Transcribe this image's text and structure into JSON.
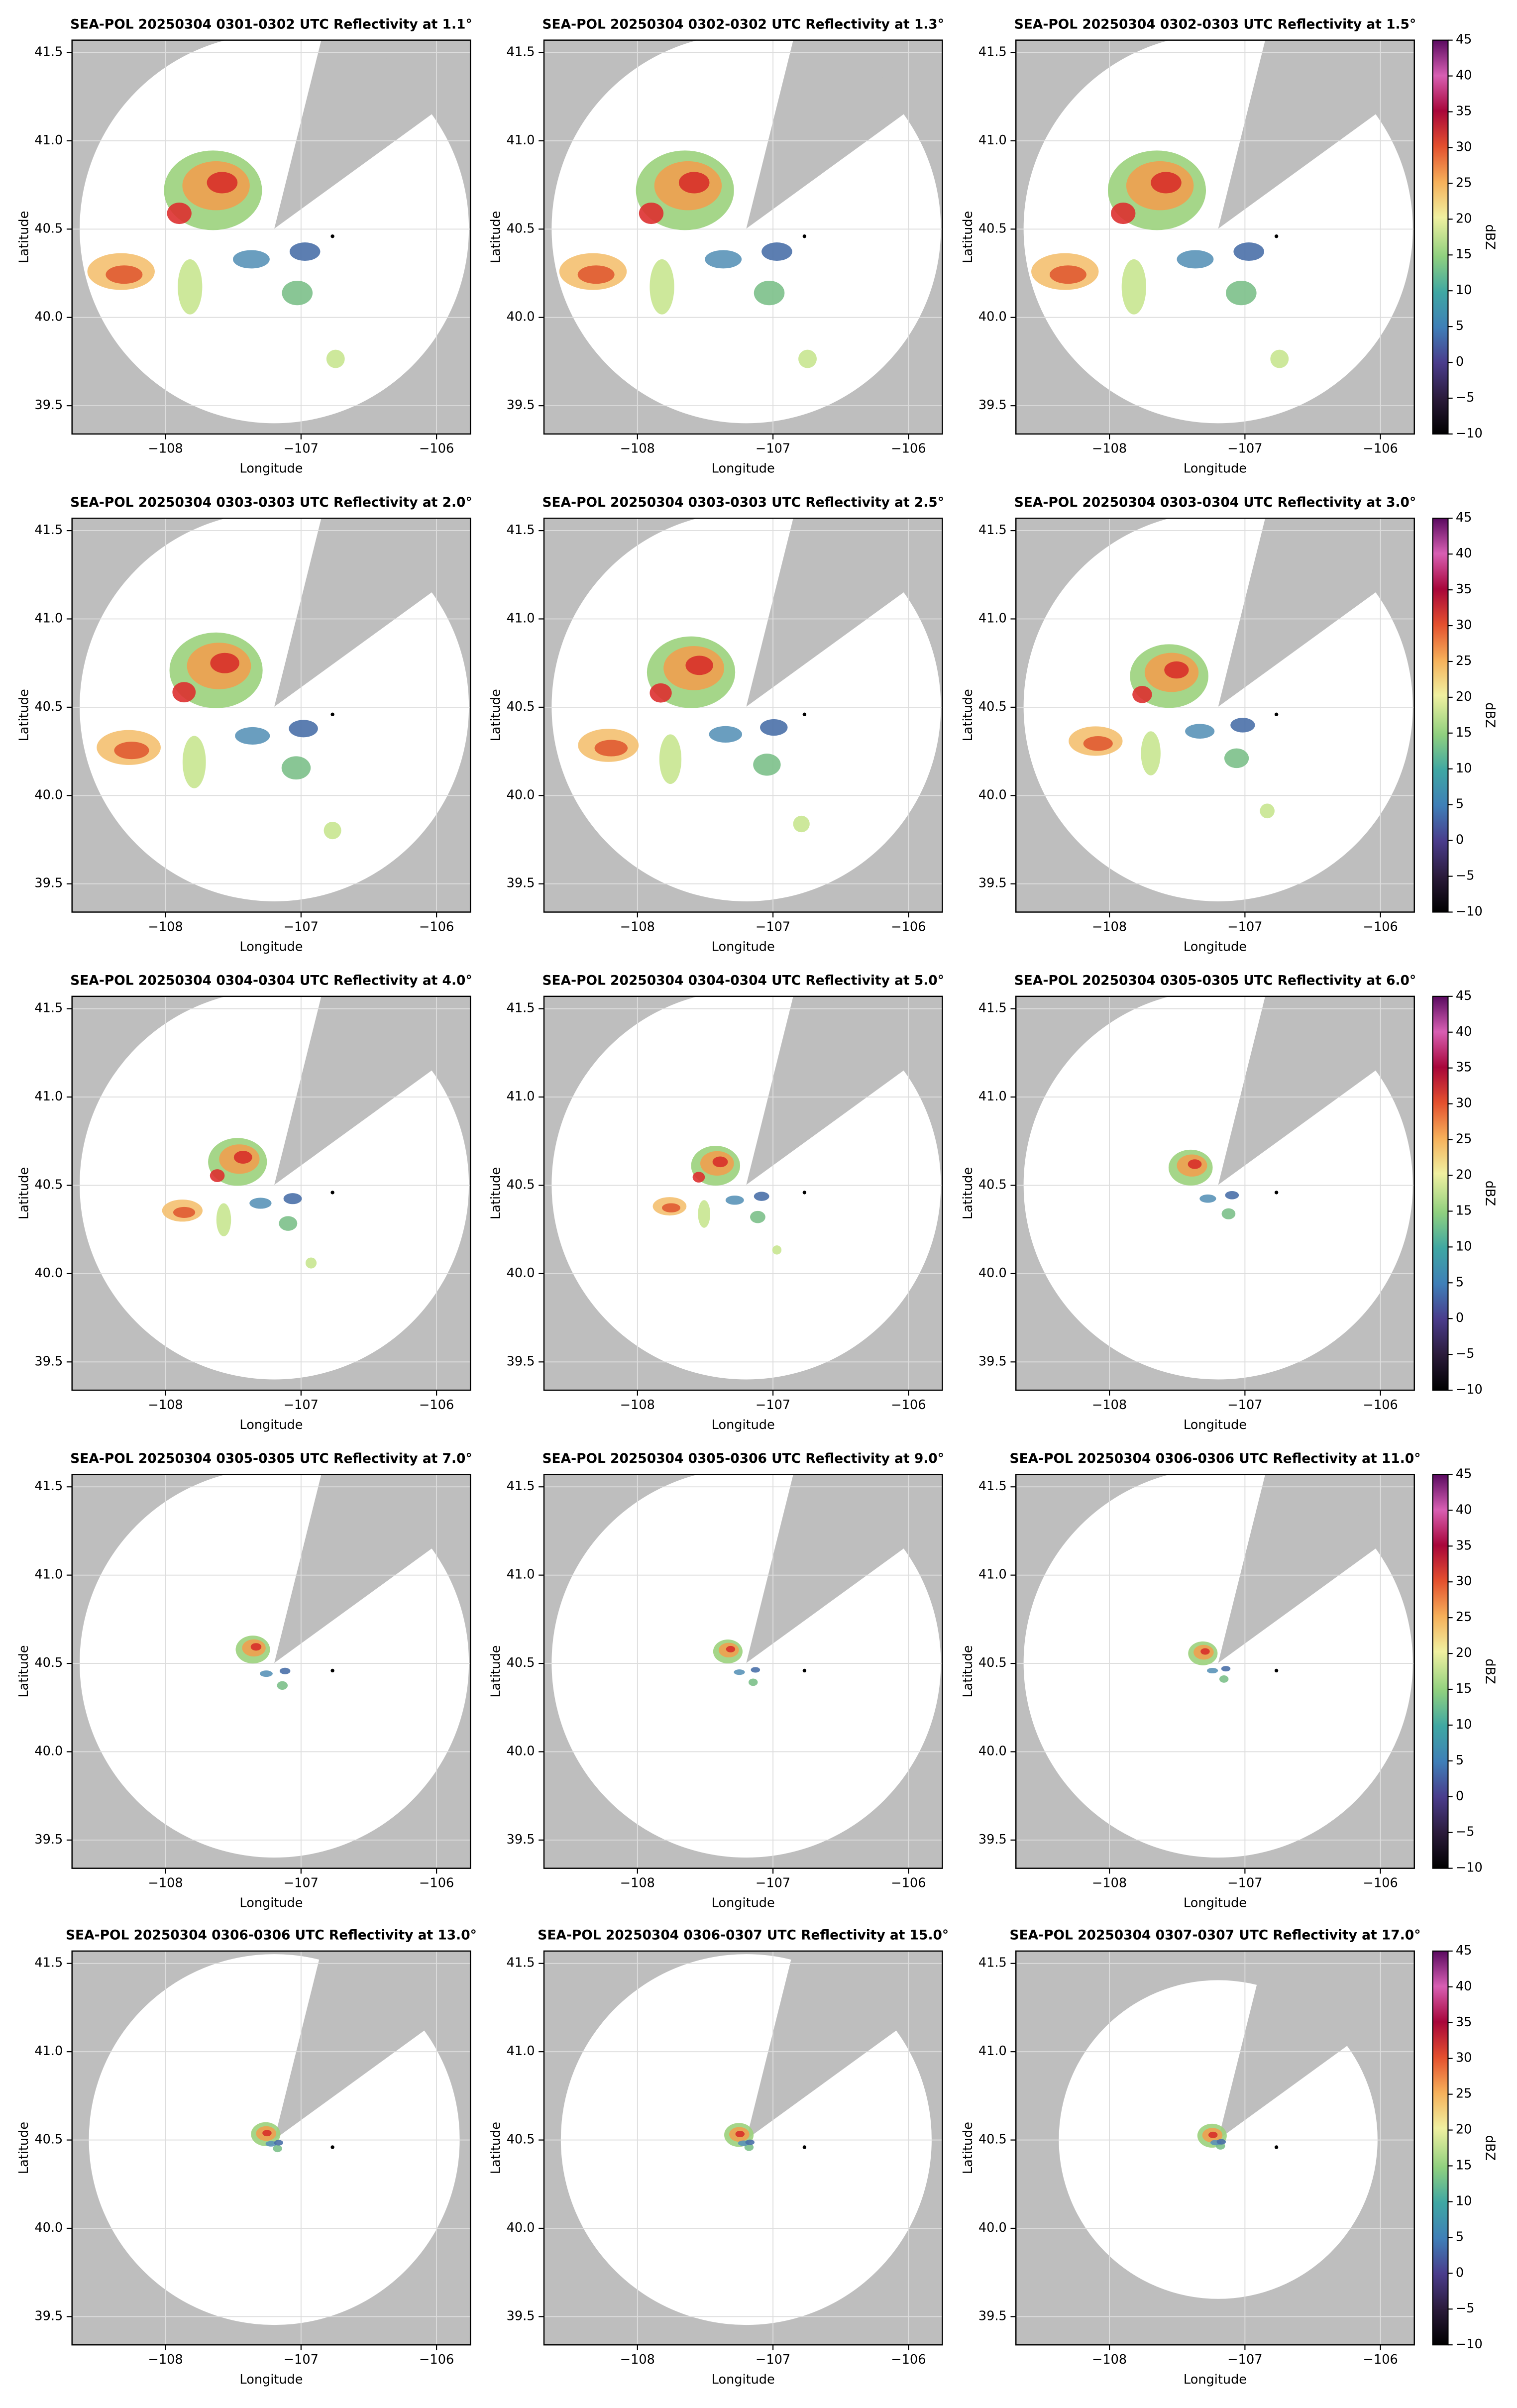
{
  "chart_data": [
    {
      "type": "radar",
      "title": "SEA-POL 20250304 0301-0302 UTC Reflectivity at 1.1°",
      "xlabel": "Longitude",
      "ylabel": "Latitude",
      "xlim": [
        -108.69,
        -105.75
      ],
      "ylim": [
        39.34,
        41.57
      ],
      "xticks": [
        {
          "value": -108,
          "label": "−108"
        },
        {
          "value": -107,
          "label": "−107"
        },
        {
          "value": -106,
          "label": "−106"
        }
      ],
      "yticks": [
        39.5,
        {
          "value": 40,
          "label": "40.0"
        },
        40.5,
        {
          "value": 41,
          "label": "41.0"
        },
        41.5
      ],
      "grid": true
    },
    {
      "type": "radar",
      "title": "SEA-POL 20250304 0302-0302 UTC Reflectivity at 1.3°",
      "xlabel": "Longitude",
      "ylabel": "Latitude",
      "xlim": [
        -108.69,
        -105.75
      ],
      "ylim": [
        39.34,
        41.57
      ],
      "xticks": [
        {
          "value": -108,
          "label": "−108"
        },
        {
          "value": -107,
          "label": "−107"
        },
        {
          "value": -106,
          "label": "−106"
        }
      ],
      "yticks": [
        39.5,
        {
          "value": 40,
          "label": "40.0"
        },
        40.5,
        {
          "value": 41,
          "label": "41.0"
        },
        41.5
      ],
      "grid": true
    },
    {
      "type": "radar",
      "title": "SEA-POL 20250304 0302-0303 UTC Reflectivity at 1.5°",
      "xlabel": "Longitude",
      "ylabel": "Latitude",
      "xlim": [
        -108.69,
        -105.75
      ],
      "ylim": [
        39.34,
        41.57
      ],
      "xticks": [
        {
          "value": -108,
          "label": "−108"
        },
        {
          "value": -107,
          "label": "−107"
        },
        {
          "value": -106,
          "label": "−106"
        }
      ],
      "yticks": [
        39.5,
        {
          "value": 40,
          "label": "40.0"
        },
        40.5,
        {
          "value": 41,
          "label": "41.0"
        },
        41.5
      ],
      "grid": true,
      "colorbar": {
        "label": "dBZ",
        "lim": [
          -10,
          45
        ],
        "ticks": [
          {
            "value": -10,
            "label": "−10"
          },
          {
            "value": -5,
            "label": "−5"
          },
          0,
          5,
          10,
          15,
          20,
          25,
          30,
          35,
          40,
          45
        ]
      }
    },
    {
      "type": "radar",
      "title": "SEA-POL 20250304 0303-0303 UTC Reflectivity at 2.0°",
      "xlabel": "Longitude",
      "ylabel": "Latitude",
      "xlim": [
        -108.69,
        -105.75
      ],
      "ylim": [
        39.34,
        41.57
      ],
      "xticks": [
        {
          "value": -108,
          "label": "−108"
        },
        {
          "value": -107,
          "label": "−107"
        },
        {
          "value": -106,
          "label": "−106"
        }
      ],
      "yticks": [
        39.5,
        {
          "value": 40,
          "label": "40.0"
        },
        40.5,
        {
          "value": 41,
          "label": "41.0"
        },
        41.5
      ],
      "grid": true
    },
    {
      "type": "radar",
      "title": "SEA-POL 20250304 0303-0303 UTC Reflectivity at 2.5°",
      "xlabel": "Longitude",
      "ylabel": "Latitude",
      "xlim": [
        -108.69,
        -105.75
      ],
      "ylim": [
        39.34,
        41.57
      ],
      "xticks": [
        {
          "value": -108,
          "label": "−108"
        },
        {
          "value": -107,
          "label": "−107"
        },
        {
          "value": -106,
          "label": "−106"
        }
      ],
      "yticks": [
        39.5,
        {
          "value": 40,
          "label": "40.0"
        },
        40.5,
        {
          "value": 41,
          "label": "41.0"
        },
        41.5
      ],
      "grid": true
    },
    {
      "type": "radar",
      "title": "SEA-POL 20250304 0303-0304 UTC Reflectivity at 3.0°",
      "xlabel": "Longitude",
      "ylabel": "Latitude",
      "xlim": [
        -108.69,
        -105.75
      ],
      "ylim": [
        39.34,
        41.57
      ],
      "xticks": [
        {
          "value": -108,
          "label": "−108"
        },
        {
          "value": -107,
          "label": "−107"
        },
        {
          "value": -106,
          "label": "−106"
        }
      ],
      "yticks": [
        39.5,
        {
          "value": 40,
          "label": "40.0"
        },
        40.5,
        {
          "value": 41,
          "label": "41.0"
        },
        41.5
      ],
      "grid": true,
      "colorbar": {
        "label": "dBZ",
        "lim": [
          -10,
          45
        ],
        "ticks": [
          {
            "value": -10,
            "label": "−10"
          },
          {
            "value": -5,
            "label": "−5"
          },
          0,
          5,
          10,
          15,
          20,
          25,
          30,
          35,
          40,
          45
        ]
      }
    },
    {
      "type": "radar",
      "title": "SEA-POL 20250304 0304-0304 UTC Reflectivity at 4.0°",
      "xlabel": "Longitude",
      "ylabel": "Latitude",
      "xlim": [
        -108.69,
        -105.75
      ],
      "ylim": [
        39.34,
        41.57
      ],
      "xticks": [
        {
          "value": -108,
          "label": "−108"
        },
        {
          "value": -107,
          "label": "−107"
        },
        {
          "value": -106,
          "label": "−106"
        }
      ],
      "yticks": [
        39.5,
        {
          "value": 40,
          "label": "40.0"
        },
        40.5,
        {
          "value": 41,
          "label": "41.0"
        },
        41.5
      ],
      "grid": true
    },
    {
      "type": "radar",
      "title": "SEA-POL 20250304 0304-0304 UTC Reflectivity at 5.0°",
      "xlabel": "Longitude",
      "ylabel": "Latitude",
      "xlim": [
        -108.69,
        -105.75
      ],
      "ylim": [
        39.34,
        41.57
      ],
      "xticks": [
        {
          "value": -108,
          "label": "−108"
        },
        {
          "value": -107,
          "label": "−107"
        },
        {
          "value": -106,
          "label": "−106"
        }
      ],
      "yticks": [
        39.5,
        {
          "value": 40,
          "label": "40.0"
        },
        40.5,
        {
          "value": 41,
          "label": "41.0"
        },
        41.5
      ],
      "grid": true
    },
    {
      "type": "radar",
      "title": "SEA-POL 20250304 0305-0305 UTC Reflectivity at 6.0°",
      "xlabel": "Longitude",
      "ylabel": "Latitude",
      "xlim": [
        -108.69,
        -105.75
      ],
      "ylim": [
        39.34,
        41.57
      ],
      "xticks": [
        {
          "value": -108,
          "label": "−108"
        },
        {
          "value": -107,
          "label": "−107"
        },
        {
          "value": -106,
          "label": "−106"
        }
      ],
      "yticks": [
        39.5,
        {
          "value": 40,
          "label": "40.0"
        },
        40.5,
        {
          "value": 41,
          "label": "41.0"
        },
        41.5
      ],
      "grid": true,
      "colorbar": {
        "label": "dBZ",
        "lim": [
          -10,
          45
        ],
        "ticks": [
          {
            "value": -10,
            "label": "−10"
          },
          {
            "value": -5,
            "label": "−5"
          },
          0,
          5,
          10,
          15,
          20,
          25,
          30,
          35,
          40,
          45
        ]
      }
    },
    {
      "type": "radar",
      "title": "SEA-POL 20250304 0305-0305 UTC Reflectivity at 7.0°",
      "xlabel": "Longitude",
      "ylabel": "Latitude",
      "xlim": [
        -108.69,
        -105.75
      ],
      "ylim": [
        39.34,
        41.57
      ],
      "xticks": [
        {
          "value": -108,
          "label": "−108"
        },
        {
          "value": -107,
          "label": "−107"
        },
        {
          "value": -106,
          "label": "−106"
        }
      ],
      "yticks": [
        39.5,
        {
          "value": 40,
          "label": "40.0"
        },
        40.5,
        {
          "value": 41,
          "label": "41.0"
        },
        41.5
      ],
      "grid": true
    },
    {
      "type": "radar",
      "title": "SEA-POL 20250304 0305-0306 UTC Reflectivity at 9.0°",
      "xlabel": "Longitude",
      "ylabel": "Latitude",
      "xlim": [
        -108.69,
        -105.75
      ],
      "ylim": [
        39.34,
        41.57
      ],
      "xticks": [
        {
          "value": -108,
          "label": "−108"
        },
        {
          "value": -107,
          "label": "−107"
        },
        {
          "value": -106,
          "label": "−106"
        }
      ],
      "yticks": [
        39.5,
        {
          "value": 40,
          "label": "40.0"
        },
        40.5,
        {
          "value": 41,
          "label": "41.0"
        },
        41.5
      ],
      "grid": true
    },
    {
      "type": "radar",
      "title": "SEA-POL 20250304 0306-0306 UTC Reflectivity at 11.0°",
      "xlabel": "Longitude",
      "ylabel": "Latitude",
      "xlim": [
        -108.69,
        -105.75
      ],
      "ylim": [
        39.34,
        41.57
      ],
      "xticks": [
        {
          "value": -108,
          "label": "−108"
        },
        {
          "value": -107,
          "label": "−107"
        },
        {
          "value": -106,
          "label": "−106"
        }
      ],
      "yticks": [
        39.5,
        {
          "value": 40,
          "label": "40.0"
        },
        40.5,
        {
          "value": 41,
          "label": "41.0"
        },
        41.5
      ],
      "grid": true,
      "colorbar": {
        "label": "dBZ",
        "lim": [
          -10,
          45
        ],
        "ticks": [
          {
            "value": -10,
            "label": "−10"
          },
          {
            "value": -5,
            "label": "−5"
          },
          0,
          5,
          10,
          15,
          20,
          25,
          30,
          35,
          40,
          45
        ]
      }
    },
    {
      "type": "radar",
      "title": "SEA-POL 20250304 0306-0306 UTC Reflectivity at 13.0°",
      "xlabel": "Longitude",
      "ylabel": "Latitude",
      "xlim": [
        -108.69,
        -105.75
      ],
      "ylim": [
        39.34,
        41.57
      ],
      "xticks": [
        {
          "value": -108,
          "label": "−108"
        },
        {
          "value": -107,
          "label": "−107"
        },
        {
          "value": -106,
          "label": "−106"
        }
      ],
      "yticks": [
        39.5,
        {
          "value": 40,
          "label": "40.0"
        },
        40.5,
        {
          "value": 41,
          "label": "41.0"
        },
        41.5
      ],
      "grid": true
    },
    {
      "type": "radar",
      "title": "SEA-POL 20250304 0306-0307 UTC Reflectivity at 15.0°",
      "xlabel": "Longitude",
      "ylabel": "Latitude",
      "xlim": [
        -108.69,
        -105.75
      ],
      "ylim": [
        39.34,
        41.57
      ],
      "xticks": [
        {
          "value": -108,
          "label": "−108"
        },
        {
          "value": -107,
          "label": "−107"
        },
        {
          "value": -106,
          "label": "−106"
        }
      ],
      "yticks": [
        39.5,
        {
          "value": 40,
          "label": "40.0"
        },
        40.5,
        {
          "value": 41,
          "label": "41.0"
        },
        41.5
      ],
      "grid": true
    },
    {
      "type": "radar",
      "title": "SEA-POL 20250304 0307-0307 UTC Reflectivity at 17.0°",
      "xlabel": "Longitude",
      "ylabel": "Latitude",
      "xlim": [
        -108.69,
        -105.75
      ],
      "ylim": [
        39.34,
        41.57
      ],
      "xticks": [
        {
          "value": -108,
          "label": "−108"
        },
        {
          "value": -107,
          "label": "−107"
        },
        {
          "value": -106,
          "label": "−106"
        }
      ],
      "yticks": [
        39.5,
        {
          "value": 40,
          "label": "40.0"
        },
        40.5,
        {
          "value": 41,
          "label": "41.0"
        },
        41.5
      ],
      "grid": true,
      "colorbar": {
        "label": "dBZ",
        "lim": [
          -10,
          45
        ],
        "ticks": [
          {
            "value": -10,
            "label": "−10"
          },
          {
            "value": -5,
            "label": "−5"
          },
          0,
          5,
          10,
          15,
          20,
          25,
          30,
          35,
          40,
          45
        ]
      }
    }
  ]
}
